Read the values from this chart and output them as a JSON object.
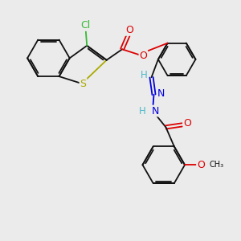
{
  "background_color": "#ebebeb",
  "colors": {
    "C": "#111111",
    "H": "#4ab8cc",
    "N": "#0000dd",
    "O": "#dd0000",
    "S": "#aaaa00",
    "Cl": "#33bb33"
  },
  "lw": 1.3,
  "fs": 8.5,
  "figsize": [
    3.0,
    3.0
  ],
  "dpi": 100,
  "xlim": [
    0,
    10
  ],
  "ylim": [
    0,
    10
  ]
}
